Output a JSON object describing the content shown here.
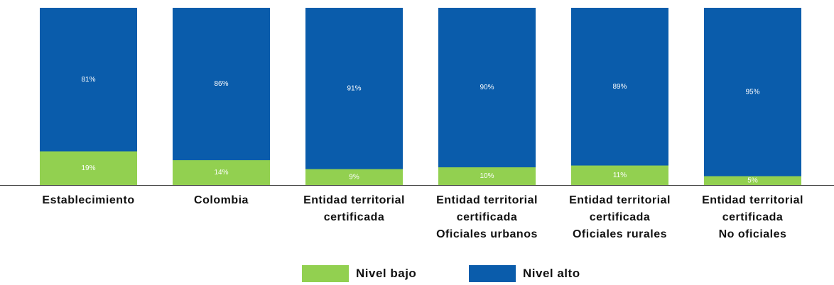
{
  "chart_data": {
    "type": "stacked_bar",
    "categories": [
      "Establecimiento",
      "Colombia",
      "Entidad territorial\ncertificada",
      "Entidad territorial\ncertificada\nOficiales urbanos",
      "Entidad territorial\ncertificada\nOficiales rurales",
      "Entidad territorial\ncertificada\nNo oficiales"
    ],
    "series": [
      {
        "name": "Nivel bajo",
        "color": "#92d050",
        "values": [
          19,
          14,
          9,
          10,
          11,
          5
        ],
        "value_labels": [
          "19%",
          "14%",
          "9%",
          "10%",
          "11%",
          "5%"
        ]
      },
      {
        "name": "Nivel alto",
        "color": "#0a5cab",
        "values": [
          81,
          86,
          91,
          90,
          89,
          95
        ],
        "value_labels": [
          "81%",
          "86%",
          "91%",
          "90%",
          "89%",
          "95%"
        ]
      }
    ],
    "ylim": [
      0,
      100
    ]
  }
}
